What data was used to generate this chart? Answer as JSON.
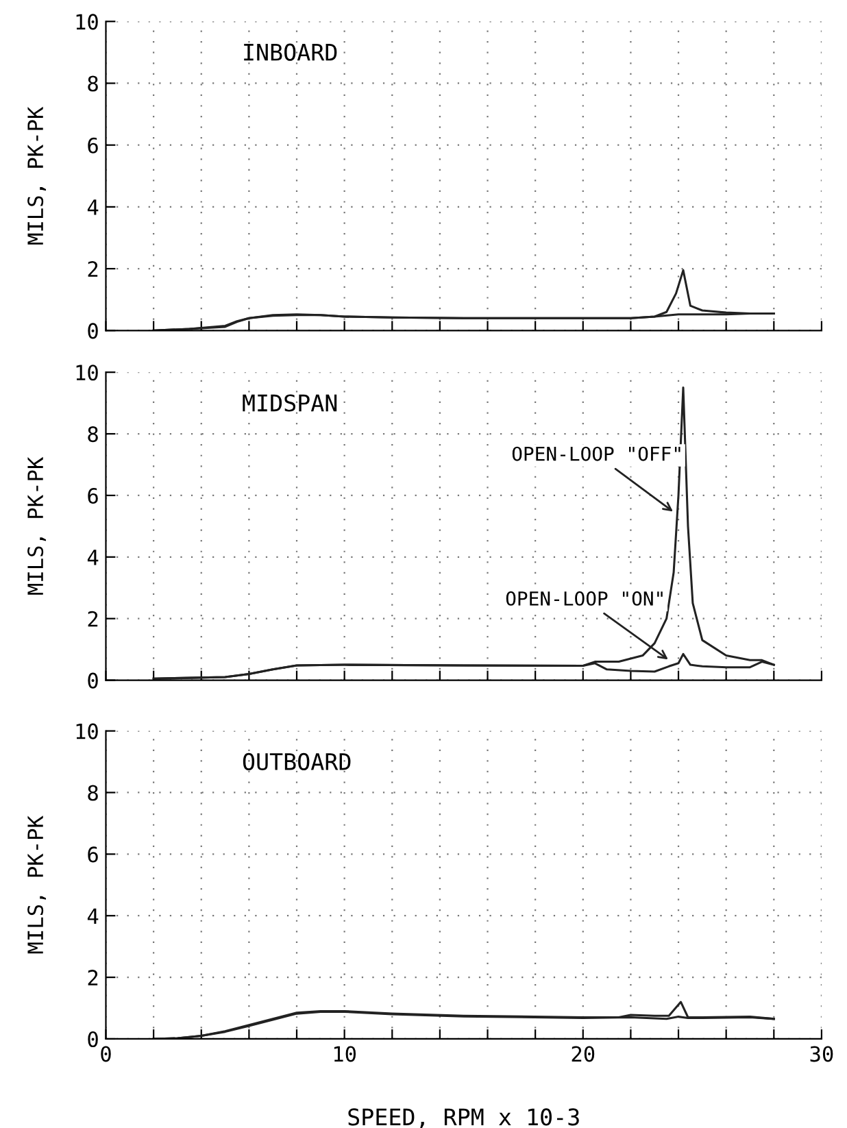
{
  "chart_data": [
    {
      "type": "line",
      "title": "INBOARD",
      "ylabel": "MILS, PK-PK",
      "xlim": [
        0,
        30
      ],
      "ylim": [
        0,
        10
      ],
      "xticks": [
        0,
        {
          "value": 2,
          "label": null
        },
        {
          "value": 4,
          "label": null
        },
        {
          "value": 6,
          "label": null
        },
        {
          "value": 8,
          "label": null
        },
        10,
        {
          "value": 12,
          "label": null
        },
        {
          "value": 14,
          "label": null
        },
        {
          "value": 16,
          "label": null
        },
        {
          "value": 18,
          "label": null
        },
        20,
        {
          "value": 22,
          "label": null
        },
        {
          "value": 24,
          "label": null
        },
        {
          "value": 26,
          "label": null
        },
        {
          "value": 28,
          "label": null
        },
        30
      ],
      "yticks": [
        0,
        2,
        4,
        6,
        8,
        10
      ],
      "grid": true,
      "tick_labels": "y",
      "marker": "none",
      "line_style": "solid",
      "series": [
        {
          "color": "#222222",
          "x": [
            2,
            3.5,
            5,
            5.5,
            6,
            7,
            8,
            9,
            10,
            12,
            15,
            18,
            20,
            22,
            23,
            23.5,
            23.9,
            24.2,
            24.5,
            25,
            26,
            27,
            28
          ],
          "values": [
            0,
            0.05,
            0.15,
            0.3,
            0.4,
            0.5,
            0.52,
            0.5,
            0.45,
            0.42,
            0.4,
            0.4,
            0.4,
            0.4,
            0.45,
            0.6,
            1.2,
            1.95,
            0.8,
            0.65,
            0.58,
            0.55,
            0.55
          ]
        },
        {
          "color": "#222222",
          "x": [
            2,
            3.5,
            5,
            5.5,
            6,
            7,
            8,
            9,
            10,
            12,
            15,
            18,
            20,
            22,
            23,
            24,
            25,
            26,
            27,
            28
          ],
          "values": [
            0,
            0.05,
            0.12,
            0.28,
            0.4,
            0.48,
            0.5,
            0.5,
            0.45,
            0.42,
            0.4,
            0.4,
            0.4,
            0.4,
            0.45,
            0.52,
            0.52,
            0.52,
            0.55,
            0.55
          ]
        }
      ]
    },
    {
      "type": "line",
      "title": "MIDSPAN",
      "ylabel": "MILS, PK-PK",
      "xlim": [
        0,
        30
      ],
      "ylim": [
        0,
        10
      ],
      "xticks": [
        0,
        {
          "value": 2,
          "label": null
        },
        {
          "value": 4,
          "label": null
        },
        {
          "value": 6,
          "label": null
        },
        {
          "value": 8,
          "label": null
        },
        10,
        {
          "value": 12,
          "label": null
        },
        {
          "value": 14,
          "label": null
        },
        {
          "value": 16,
          "label": null
        },
        {
          "value": 18,
          "label": null
        },
        20,
        {
          "value": 22,
          "label": null
        },
        {
          "value": 24,
          "label": null
        },
        {
          "value": 26,
          "label": null
        },
        {
          "value": 28,
          "label": null
        },
        30
      ],
      "yticks": [
        0,
        2,
        4,
        6,
        8,
        10
      ],
      "grid": true,
      "tick_labels": "y",
      "marker": "none",
      "line_style": "solid",
      "annotations": [
        {
          "text": "OPEN-LOOP \"OFF\"",
          "x": 23.9,
          "y": 5.4
        },
        {
          "text": "OPEN-LOOP \"ON\"",
          "x": 23.7,
          "y": 0.6
        }
      ],
      "series": [
        {
          "color": "#222222",
          "x": [
            2,
            5,
            6,
            7,
            8,
            10,
            15,
            20,
            20.5,
            21.5,
            22.5,
            23,
            23.5,
            23.8,
            24,
            24.2,
            24.4,
            24.6,
            25,
            26,
            27,
            27.5,
            28
          ],
          "values": [
            0.05,
            0.1,
            0.2,
            0.35,
            0.48,
            0.5,
            0.48,
            0.47,
            0.6,
            0.6,
            0.8,
            1.2,
            2,
            3.5,
            6,
            9.5,
            5,
            2.5,
            1.3,
            0.8,
            0.65,
            0.65,
            0.5
          ]
        },
        {
          "color": "#222222",
          "x": [
            2,
            5,
            6,
            7,
            8,
            10,
            15,
            20,
            20.5,
            21,
            22,
            23,
            23.6,
            24,
            24.2,
            24.5,
            25,
            26,
            27,
            27.5,
            28
          ],
          "values": [
            0.05,
            0.1,
            0.2,
            0.35,
            0.48,
            0.5,
            0.48,
            0.47,
            0.55,
            0.35,
            0.3,
            0.28,
            0.45,
            0.55,
            0.85,
            0.5,
            0.45,
            0.42,
            0.42,
            0.6,
            0.5
          ]
        }
      ]
    },
    {
      "type": "line",
      "title": "OUTBOARD",
      "ylabel": "MILS, PK-PK",
      "xlabel": "SPEED, RPM x 10-3",
      "xlim": [
        0,
        30
      ],
      "ylim": [
        0,
        10
      ],
      "xticks": [
        0,
        {
          "value": 2,
          "label": null
        },
        {
          "value": 4,
          "label": null
        },
        {
          "value": 6,
          "label": null
        },
        {
          "value": 8,
          "label": null
        },
        10,
        {
          "value": 12,
          "label": null
        },
        {
          "value": 14,
          "label": null
        },
        {
          "value": 16,
          "label": null
        },
        {
          "value": 18,
          "label": null
        },
        20,
        {
          "value": 22,
          "label": null
        },
        {
          "value": 24,
          "label": null
        },
        {
          "value": 26,
          "label": null
        },
        {
          "value": 28,
          "label": null
        },
        30
      ],
      "yticks": [
        0,
        2,
        4,
        6,
        8,
        10
      ],
      "grid": true,
      "marker": "none",
      "line_style": "solid",
      "series": [
        {
          "color": "#222222",
          "x": [
            2,
            3,
            4,
            5,
            6,
            7,
            8,
            9,
            10,
            12,
            15,
            20,
            21.5,
            22,
            23,
            23.6,
            24.1,
            24.4,
            25,
            27,
            28
          ],
          "values": [
            0,
            0.02,
            0.1,
            0.25,
            0.45,
            0.65,
            0.85,
            0.9,
            0.9,
            0.82,
            0.75,
            0.7,
            0.7,
            0.78,
            0.75,
            0.75,
            1.2,
            0.7,
            0.7,
            0.72,
            0.65
          ]
        },
        {
          "color": "#222222",
          "x": [
            2,
            3,
            4,
            5,
            6,
            7,
            8,
            9,
            10,
            12,
            15,
            20,
            22,
            23.5,
            24,
            24.4,
            25,
            27,
            28
          ],
          "values": [
            0,
            0.02,
            0.1,
            0.23,
            0.42,
            0.62,
            0.82,
            0.88,
            0.88,
            0.8,
            0.73,
            0.68,
            0.7,
            0.65,
            0.72,
            0.68,
            0.68,
            0.7,
            0.65
          ]
        }
      ]
    }
  ]
}
